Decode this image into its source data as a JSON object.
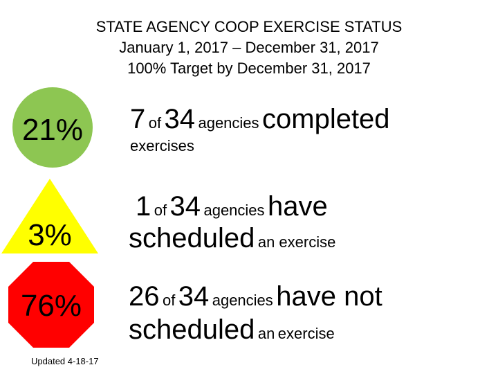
{
  "header": {
    "title": "STATE AGENCY COOP EXERCISE STATUS",
    "date_range": "January 1, 2017 – December 31, 2017",
    "target": "100% Target by December 31, 2017"
  },
  "status_rows": [
    {
      "shape": "circle",
      "color": "#8dc652",
      "percent": "21%",
      "count": "7",
      "of": "of",
      "total": "34",
      "agencies": "agencies",
      "status_big": "completed",
      "status_small": "exercises"
    },
    {
      "shape": "triangle",
      "color": "#ffff00",
      "percent": "3%",
      "count": "1",
      "of": "of",
      "total": "34",
      "agencies": "agencies",
      "status_big": "have",
      "status_big2": "scheduled",
      "status_small": "an exercise"
    },
    {
      "shape": "octagon",
      "color": "#ff0000",
      "percent": "76%",
      "count": "26",
      "of": "of",
      "total": "34",
      "agencies": "agencies",
      "status_big": "have not",
      "status_big2": "scheduled",
      "status_small1": "an",
      "status_small2": "exercise"
    }
  ],
  "footer": {
    "updated": "Updated 4-18-17"
  }
}
